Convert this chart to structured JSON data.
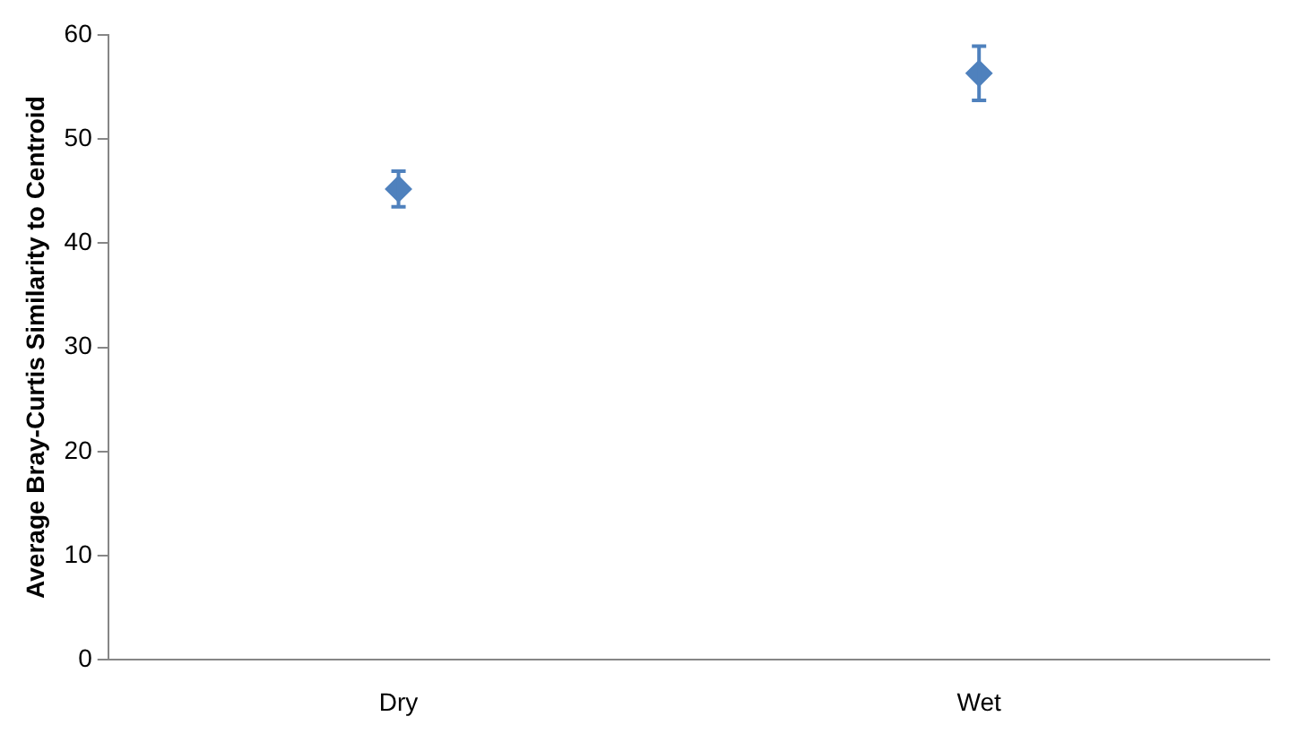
{
  "chart_data": {
    "type": "scatter",
    "ylabel": "Average Bray-Curtis Similarity to Centroid",
    "categories": [
      "Dry",
      "Wet"
    ],
    "series": [
      {
        "color": "#4f81bd",
        "values": [
          45.2,
          56.3
        ],
        "errors": [
          1.7,
          2.6
        ]
      }
    ],
    "ylim": [
      0,
      60
    ],
    "yticks": [
      0,
      10,
      20,
      30,
      40,
      50,
      60
    ],
    "grid": false,
    "legend": false,
    "marker": "diamond"
  }
}
